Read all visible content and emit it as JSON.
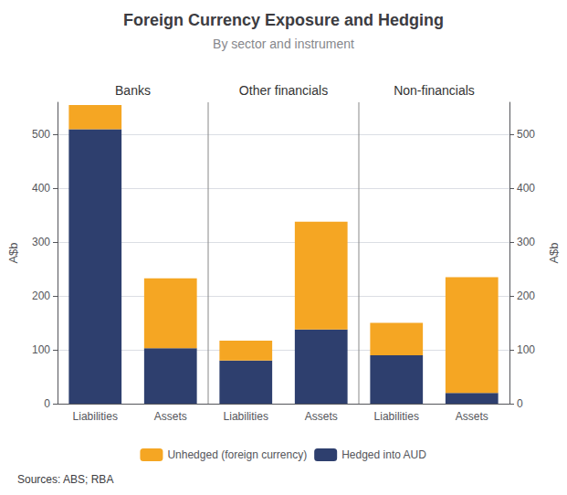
{
  "chart_data": {
    "type": "bar",
    "title": "Foreign Currency Exposure and Hedging",
    "subtitle": "By sector and instrument",
    "ylabel": "A$b",
    "y2label": "A$b",
    "source": "Sources: ABS; RBA",
    "categories": [
      "Liabilities",
      "Assets",
      "Liabilities",
      "Assets",
      "Liabilities",
      "Assets"
    ],
    "group_labels": [
      "Banks",
      "Other financials",
      "Non-financials"
    ],
    "series": [
      {
        "name": "Hedged into AUD",
        "color": "#2e3f6e",
        "values": [
          510,
          103,
          80,
          138,
          90,
          20
        ]
      },
      {
        "name": "Unhedged (foreign currency)",
        "color": "#f5a623",
        "values": [
          45,
          130,
          37,
          200,
          60,
          215
        ]
      }
    ],
    "stacked": true,
    "ylim": [
      0,
      560
    ],
    "yticks": [
      0,
      100,
      200,
      300,
      400,
      500
    ],
    "y2lim": [
      0,
      560
    ],
    "y2ticks": [
      0,
      100,
      200,
      300,
      400,
      500
    ],
    "grid": true,
    "legend": "bottom"
  }
}
